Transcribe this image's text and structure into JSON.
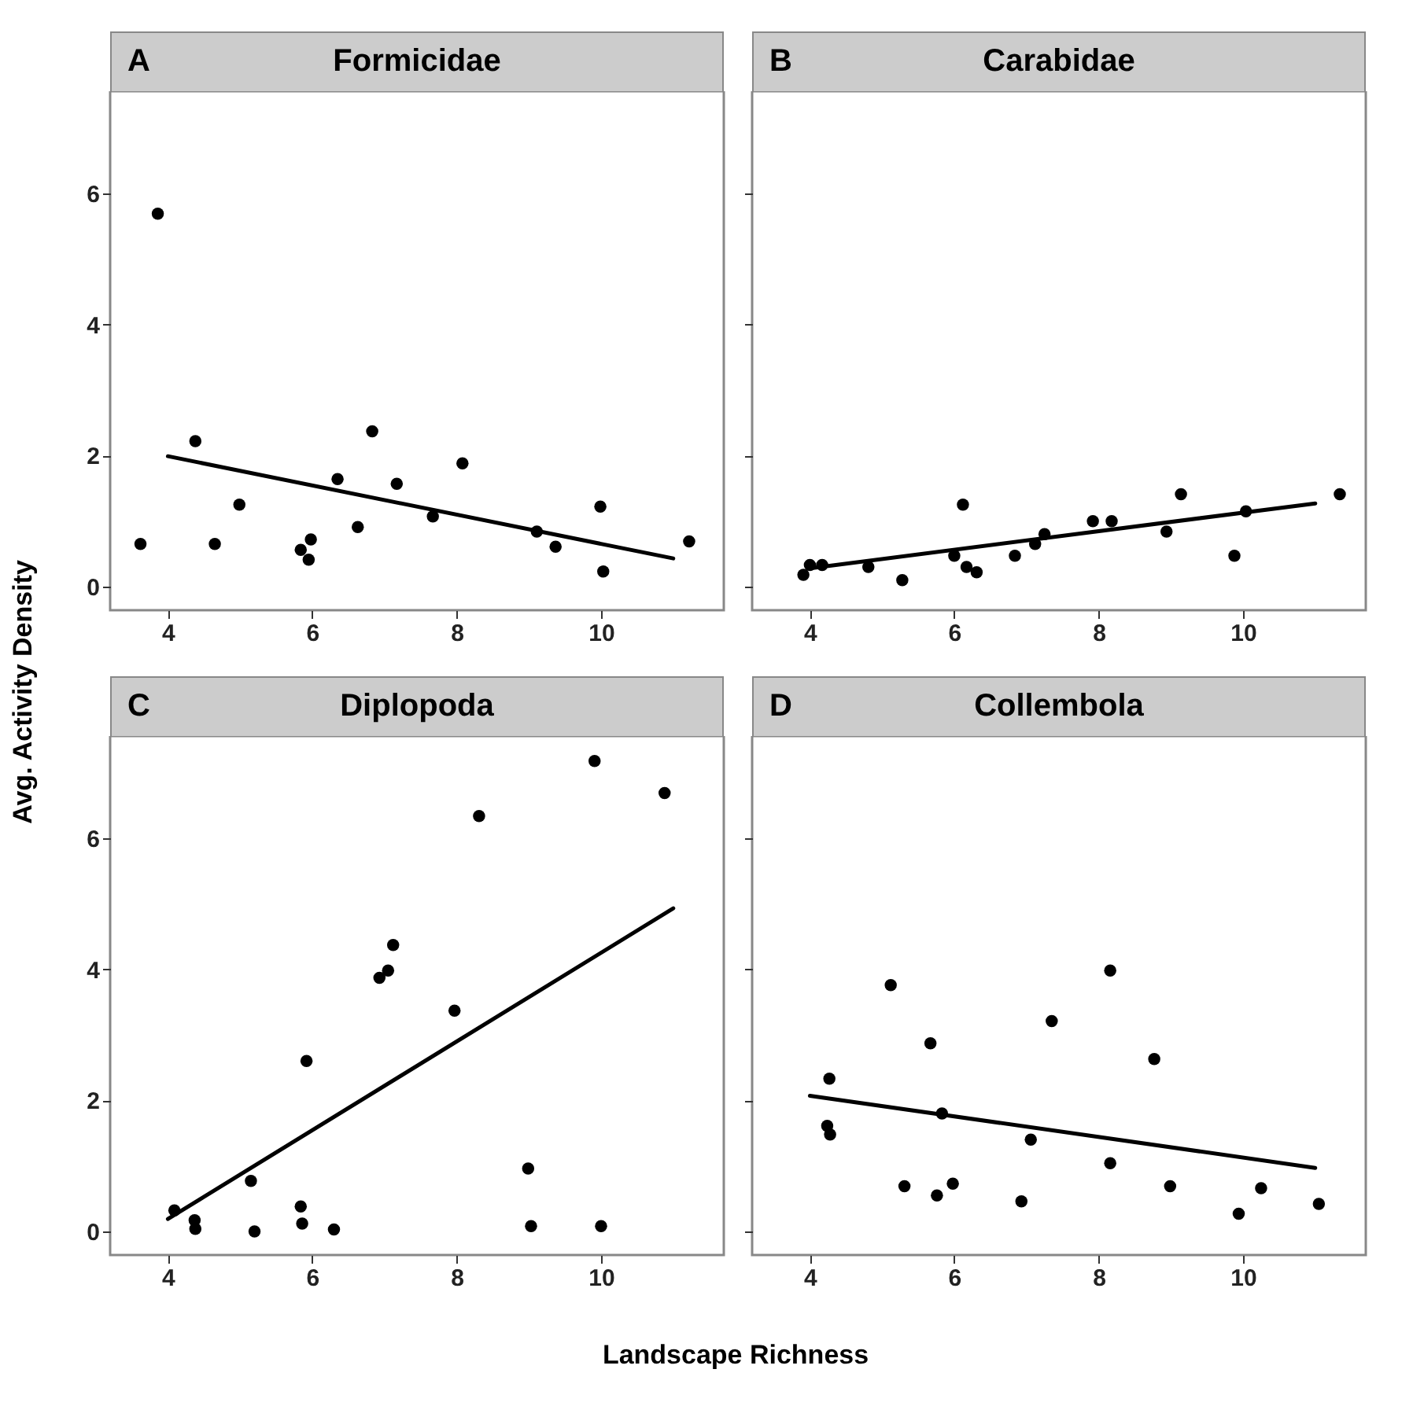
{
  "chart_data": [
    {
      "type": "scatter",
      "title": "Formicidae",
      "annotations": [
        "A"
      ],
      "ylabel": "Avg. Activity Density",
      "xlim": [
        3.2,
        11.7
      ],
      "xticks": [
        4,
        6,
        8,
        10
      ],
      "ylim": [
        -0.36,
        7.56
      ],
      "yticks": [
        0,
        2,
        4,
        6
      ],
      "series": [
        {
          "color": "#000000",
          "marker": "circle",
          "x": [
            3.62,
            3.86,
            4.38,
            4.65,
            4.99,
            5.84,
            5.95,
            5.98,
            6.35,
            6.63,
            6.83,
            7.17,
            7.67,
            8.08,
            9.11,
            9.37,
            9.99,
            10.03,
            11.22
          ],
          "values": [
            0.65,
            5.69,
            2.22,
            0.65,
            1.25,
            0.56,
            0.41,
            0.72,
            1.64,
            0.91,
            2.37,
            1.57,
            1.07,
            1.88,
            0.84,
            0.61,
            1.22,
            0.23,
            0.69
          ]
        },
        {
          "type": "line",
          "color": "#000000",
          "line_style": "solid",
          "x": [
            4,
            11
          ],
          "values": [
            1.99,
            0.43
          ]
        }
      ]
    },
    {
      "type": "scatter",
      "title": "Carabidae",
      "annotations": [
        "B"
      ],
      "xlim": [
        3.2,
        11.7
      ],
      "xticks": [
        4,
        6,
        8,
        10
      ],
      "ylim": [
        -0.36,
        7.56
      ],
      "yticks": [
        0,
        2,
        4,
        6
      ],
      "tick_labels": "x",
      "series": [
        {
          "color": "#000000",
          "marker": "circle",
          "x": [
            3.91,
            4.0,
            4.17,
            4.81,
            5.28,
            6.0,
            6.12,
            6.17,
            6.31,
            6.84,
            7.12,
            7.25,
            7.92,
            8.18,
            8.94,
            9.14,
            9.88,
            10.04,
            11.34
          ],
          "values": [
            0.18,
            0.33,
            0.33,
            0.3,
            0.1,
            0.47,
            1.25,
            0.3,
            0.22,
            0.47,
            0.65,
            0.8,
            1.0,
            1.0,
            0.84,
            1.41,
            0.47,
            1.15,
            1.41
          ]
        },
        {
          "type": "line",
          "color": "#000000",
          "line_style": "solid",
          "x": [
            4,
            11
          ],
          "values": [
            0.28,
            1.27
          ]
        }
      ]
    },
    {
      "type": "scatter",
      "title": "Diplopoda",
      "annotations": [
        "C"
      ],
      "xlabel": "Landscape Richness",
      "xlim": [
        3.2,
        11.7
      ],
      "xticks": [
        4,
        6,
        8,
        10
      ],
      "ylim": [
        -0.36,
        7.56
      ],
      "yticks": [
        0,
        2,
        4,
        6
      ],
      "series": [
        {
          "color": "#000000",
          "marker": "circle",
          "x": [
            4.09,
            4.37,
            4.38,
            5.15,
            5.2,
            5.84,
            5.86,
            5.92,
            6.3,
            6.93,
            7.05,
            7.12,
            7.97,
            8.31,
            8.99,
            9.03,
            9.91,
            10.0,
            10.88
          ],
          "values": [
            0.32,
            0.17,
            0.04,
            0.77,
            0.0,
            0.38,
            0.12,
            2.6,
            0.03,
            3.87,
            3.98,
            4.37,
            3.37,
            6.34,
            0.96,
            0.08,
            7.18,
            0.08,
            6.69
          ]
        },
        {
          "type": "line",
          "color": "#000000",
          "line_style": "solid",
          "x": [
            4,
            11
          ],
          "values": [
            0.19,
            4.93
          ]
        }
      ]
    },
    {
      "type": "scatter",
      "title": "Collembola",
      "annotations": [
        "D"
      ],
      "xlim": [
        3.2,
        11.7
      ],
      "xticks": [
        4,
        6,
        8,
        10
      ],
      "ylim": [
        -0.36,
        7.56
      ],
      "yticks": [
        0,
        2,
        4,
        6
      ],
      "tick_labels": "x",
      "series": [
        {
          "color": "#000000",
          "marker": "circle",
          "x": [
            4.27,
            4.24,
            4.28,
            5.12,
            5.31,
            5.67,
            5.76,
            5.83,
            5.98,
            6.93,
            7.06,
            7.35,
            8.16,
            8.16,
            8.77,
            8.99,
            9.94,
            10.25,
            11.05
          ],
          "values": [
            2.33,
            1.61,
            1.48,
            3.76,
            0.69,
            2.87,
            0.55,
            1.8,
            0.73,
            0.46,
            1.4,
            3.21,
            3.98,
            1.04,
            2.63,
            0.69,
            0.27,
            0.66,
            0.42
          ]
        },
        {
          "type": "line",
          "color": "#000000",
          "line_style": "solid",
          "x": [
            4,
            11
          ],
          "values": [
            2.07,
            0.97
          ]
        }
      ]
    }
  ]
}
